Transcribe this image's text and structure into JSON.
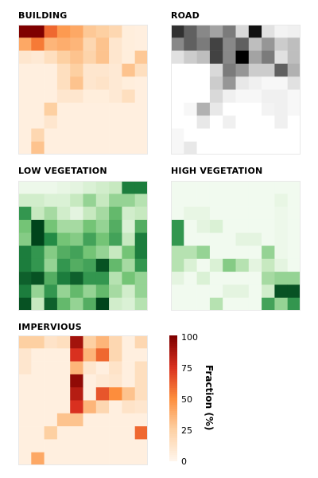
{
  "chart_data": [
    {
      "type": "heatmap",
      "title": "BUILDING",
      "colormap": "Oranges-Reds",
      "values": [
        [
          100,
          100,
          60,
          45,
          40,
          28,
          25,
          20,
          5,
          4
        ],
        [
          40,
          55,
          35,
          38,
          35,
          20,
          30,
          10,
          5,
          4
        ],
        [
          10,
          8,
          15,
          25,
          30,
          22,
          30,
          10,
          5,
          28
        ],
        [
          4,
          4,
          4,
          15,
          25,
          10,
          10,
          8,
          30,
          15
        ],
        [
          4,
          4,
          4,
          15,
          30,
          10,
          12,
          8,
          5,
          4
        ],
        [
          4,
          4,
          4,
          10,
          10,
          5,
          5,
          8,
          15,
          4
        ],
        [
          4,
          4,
          25,
          4,
          4,
          4,
          4,
          4,
          4,
          4
        ],
        [
          4,
          4,
          10,
          4,
          4,
          4,
          4,
          4,
          4,
          4
        ],
        [
          4,
          20,
          4,
          4,
          4,
          4,
          4,
          4,
          4,
          4
        ],
        [
          4,
          30,
          4,
          4,
          4,
          4,
          4,
          4,
          4,
          4
        ]
      ]
    },
    {
      "type": "heatmap",
      "title": "ROAD",
      "colormap": "Greys",
      "values": [
        [
          85,
          70,
          55,
          45,
          60,
          25,
          95,
          20,
          8,
          10
        ],
        [
          55,
          70,
          60,
          80,
          55,
          70,
          35,
          50,
          30,
          35
        ],
        [
          20,
          30,
          35,
          80,
          55,
          100,
          45,
          60,
          20,
          35
        ],
        [
          0,
          0,
          0,
          25,
          60,
          50,
          30,
          30,
          70,
          40
        ],
        [
          0,
          0,
          0,
          30,
          50,
          15,
          10,
          5,
          5,
          20
        ],
        [
          0,
          0,
          0,
          25,
          10,
          5,
          5,
          10,
          10,
          5
        ],
        [
          0,
          5,
          40,
          15,
          0,
          0,
          0,
          8,
          10,
          5
        ],
        [
          0,
          0,
          15,
          0,
          10,
          0,
          0,
          0,
          10,
          0
        ],
        [
          5,
          0,
          0,
          0,
          0,
          0,
          0,
          0,
          0,
          0
        ],
        [
          5,
          15,
          0,
          0,
          0,
          0,
          0,
          0,
          0,
          0
        ]
      ]
    },
    {
      "type": "heatmap",
      "title": "LOW VEGETATION",
      "colormap": "Greens",
      "values": [
        [
          5,
          5,
          5,
          8,
          10,
          15,
          20,
          25,
          80,
          80
        ],
        [
          20,
          20,
          15,
          15,
          25,
          40,
          25,
          40,
          40,
          30
        ],
        [
          70,
          25,
          35,
          20,
          10,
          25,
          35,
          55,
          20,
          25
        ],
        [
          50,
          100,
          50,
          35,
          35,
          50,
          40,
          60,
          15,
          60
        ],
        [
          45,
          100,
          75,
          50,
          45,
          65,
          50,
          65,
          25,
          80
        ],
        [
          80,
          70,
          45,
          60,
          65,
          50,
          40,
          25,
          50,
          80
        ],
        [
          80,
          70,
          40,
          70,
          60,
          65,
          95,
          55,
          35,
          70
        ],
        [
          90,
          95,
          60,
          80,
          90,
          70,
          70,
          30,
          50,
          40
        ],
        [
          80,
          40,
          70,
          40,
          55,
          40,
          55,
          35,
          20,
          40
        ],
        [
          95,
          25,
          90,
          55,
          40,
          60,
          100,
          20,
          15,
          30
        ]
      ]
    },
    {
      "type": "heatmap",
      "title": "HIGH VEGETATION",
      "colormap": "Greens",
      "values": [
        [
          3,
          3,
          3,
          3,
          3,
          3,
          3,
          3,
          3,
          3
        ],
        [
          3,
          3,
          3,
          3,
          3,
          3,
          3,
          3,
          8,
          3
        ],
        [
          3,
          8,
          8,
          3,
          3,
          3,
          3,
          3,
          5,
          3
        ],
        [
          70,
          3,
          10,
          15,
          3,
          3,
          3,
          3,
          5,
          3
        ],
        [
          70,
          3,
          3,
          3,
          3,
          10,
          10,
          3,
          5,
          3
        ],
        [
          30,
          30,
          40,
          3,
          3,
          3,
          3,
          40,
          5,
          3
        ],
        [
          30,
          15,
          3,
          15,
          45,
          30,
          10,
          25,
          10,
          3
        ],
        [
          10,
          3,
          15,
          3,
          3,
          3,
          3,
          35,
          40,
          40
        ],
        [
          3,
          3,
          3,
          3,
          10,
          10,
          3,
          20,
          95,
          95
        ],
        [
          3,
          3,
          3,
          30,
          3,
          3,
          3,
          65,
          40,
          70
        ]
      ]
    },
    {
      "type": "heatmap",
      "title": "IMPERVIOUS",
      "colormap": "Oranges-Reds",
      "values": [
        [
          25,
          25,
          12,
          15,
          90,
          25,
          35,
          20,
          4,
          20
        ],
        [
          10,
          4,
          4,
          4,
          75,
          35,
          60,
          20,
          4,
          4
        ],
        [
          10,
          4,
          4,
          4,
          35,
          10,
          4,
          12,
          4,
          15
        ],
        [
          4,
          4,
          4,
          4,
          95,
          4,
          8,
          10,
          4,
          15
        ],
        [
          4,
          4,
          4,
          4,
          85,
          4,
          65,
          50,
          30,
          15
        ],
        [
          4,
          4,
          4,
          4,
          75,
          35,
          20,
          4,
          12,
          10
        ],
        [
          4,
          4,
          4,
          30,
          30,
          4,
          4,
          4,
          4,
          4
        ],
        [
          4,
          4,
          25,
          4,
          4,
          4,
          4,
          4,
          4,
          60
        ],
        [
          4,
          4,
          4,
          4,
          4,
          4,
          4,
          4,
          4,
          4
        ],
        [
          4,
          40,
          4,
          4,
          4,
          4,
          4,
          4,
          4,
          4
        ]
      ]
    }
  ],
  "colorbar": {
    "label": "Fraction (%)",
    "ticks": [
      "100",
      "75",
      "50",
      "25",
      "0"
    ],
    "range": [
      0,
      100
    ]
  }
}
